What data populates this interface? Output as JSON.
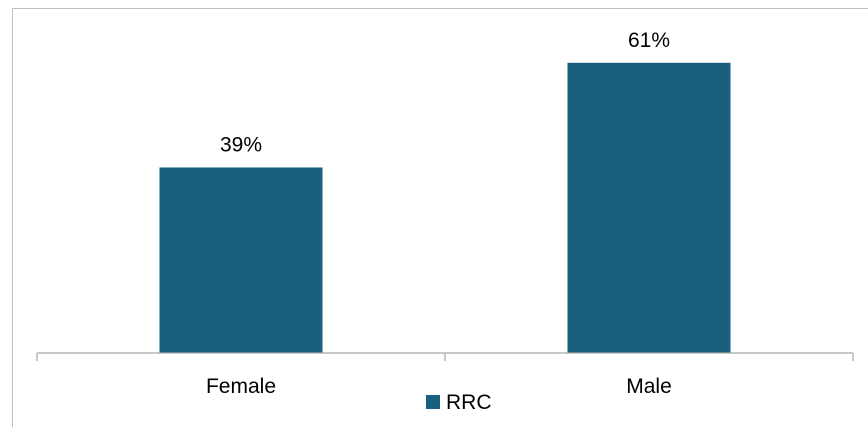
{
  "chart_data": {
    "type": "bar",
    "categories": [
      "Female",
      "Male"
    ],
    "series": [
      {
        "name": "RRC",
        "values": [
          39,
          61
        ],
        "value_labels": [
          "39%",
          "61%"
        ],
        "color": "#17607e"
      }
    ],
    "title": "",
    "xlabel": "",
    "ylabel": "",
    "ylim": [
      0,
      70
    ],
    "grid": false,
    "legend": {
      "placement": "bottom",
      "entries": [
        "RRC"
      ]
    }
  },
  "colors": {
    "bar": "#17607e",
    "axis": "#a6a6a6",
    "frame": "#bfbfbf"
  }
}
